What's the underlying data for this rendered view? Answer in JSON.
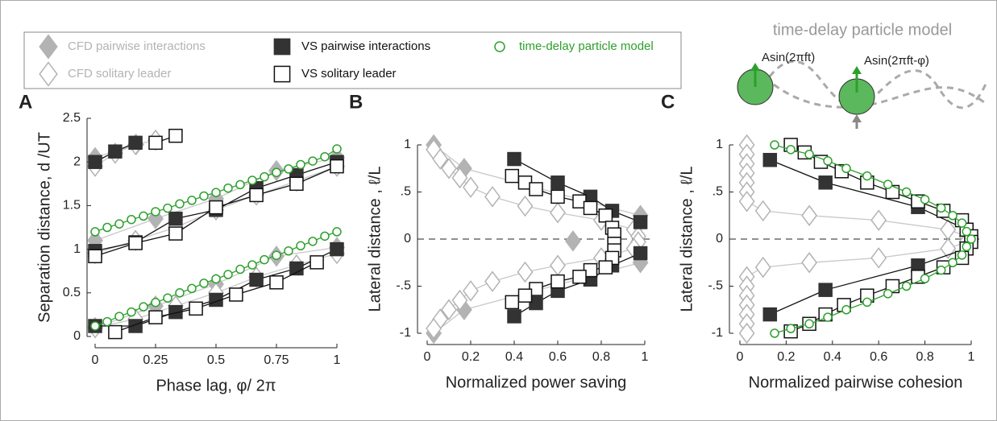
{
  "chart_data": [
    {
      "type": "scatter",
      "panel": "A",
      "x_label": "Phase lag, φ/ 2π",
      "y_label": "Separation distance, d /UT",
      "xlim": [
        0,
        1
      ],
      "ylim": [
        0,
        2.5
      ],
      "xticks": [
        0,
        0.25,
        0.5,
        0.75,
        1
      ],
      "yticks": [
        0,
        0.5,
        1,
        1.5,
        2,
        2.5
      ],
      "series": [
        {
          "name": "CFD pairwise interactions",
          "marker": "diamond",
          "filled": true,
          "color": "#b3b3b3",
          "line_color": "#c8c8c8",
          "x": [
            0,
            0.25,
            0.5,
            0.75,
            1,
            null,
            0,
            0.25,
            0.5,
            0.75,
            1,
            null,
            0,
            0.17
          ],
          "values": [
            0.1,
            0.35,
            0.6,
            0.92,
            1.02,
            null,
            1.1,
            1.35,
            1.58,
            1.9,
            2.05,
            null,
            2.05,
            2.2
          ]
        },
        {
          "name": "CFD solitary leader",
          "marker": "diamond",
          "filled": false,
          "color": "#b3b3b3",
          "line_color": "#c8c8c8",
          "x": [
            0,
            0.167,
            0.333,
            0.5,
            0.667,
            0.833,
            1,
            null,
            0,
            0.167,
            0.333,
            0.5,
            0.667,
            0.833,
            1,
            null,
            0,
            0.083,
            0.167,
            0.25
          ],
          "values": [
            0.1,
            0.2,
            0.35,
            0.5,
            0.68,
            0.82,
            0.95,
            null,
            0.95,
            1.1,
            1.25,
            1.45,
            1.62,
            1.78,
            1.95,
            null,
            1.95,
            2.1,
            2.2,
            2.25
          ]
        },
        {
          "name": "VS pairwise interactions",
          "marker": "square",
          "filled": true,
          "color": "#333333",
          "line_color": "#111111",
          "x": [
            0,
            0.167,
            0.333,
            0.5,
            0.667,
            0.833,
            1,
            null,
            0,
            0.167,
            0.333,
            0.5,
            0.667,
            0.833,
            1,
            null,
            0,
            0.083,
            0.167
          ],
          "values": [
            0.12,
            0.12,
            0.28,
            0.42,
            0.65,
            0.78,
            1.0,
            null,
            0.98,
            1.08,
            1.35,
            1.45,
            1.7,
            1.85,
            2.0,
            null,
            2.0,
            2.12,
            2.22
          ]
        },
        {
          "name": "VS solitary leader",
          "marker": "square",
          "filled": false,
          "color": "#111111",
          "line_color": "#111111",
          "x": [
            0.083,
            0.25,
            0.417,
            0.583,
            0.75,
            0.917,
            null,
            0,
            0.167,
            0.333,
            0.5,
            0.667,
            0.833,
            1,
            null,
            0.25,
            0.333
          ],
          "values": [
            0.05,
            0.22,
            0.32,
            0.48,
            0.62,
            0.85,
            null,
            0.92,
            1.07,
            1.18,
            1.48,
            1.62,
            1.75,
            1.95,
            null,
            2.22,
            2.3
          ]
        },
        {
          "name": "time-delay particle model",
          "marker": "circle",
          "filled": false,
          "color": "#2ca02c",
          "line_color": "#2ca02c",
          "x": [
            0,
            0.05,
            0.1,
            0.15,
            0.2,
            0.25,
            0.3,
            0.35,
            0.4,
            0.45,
            0.5,
            0.55,
            0.6,
            0.65,
            0.7,
            0.75,
            0.8,
            0.85,
            0.9,
            0.95,
            1,
            null,
            0,
            0.05,
            0.1,
            0.15,
            0.2,
            0.25,
            0.3,
            0.35,
            0.4,
            0.45,
            0.5,
            0.55,
            0.6,
            0.65,
            0.7,
            0.75,
            0.8,
            0.85,
            0.9,
            0.95,
            1
          ],
          "values": [
            0.12,
            0.17,
            0.23,
            0.28,
            0.34,
            0.39,
            0.44,
            0.5,
            0.55,
            0.61,
            0.66,
            0.71,
            0.77,
            0.82,
            0.88,
            0.93,
            0.98,
            1.04,
            1.09,
            1.15,
            1.2,
            null,
            1.2,
            1.25,
            1.29,
            1.34,
            1.38,
            1.43,
            1.47,
            1.52,
            1.56,
            1.61,
            1.65,
            1.7,
            1.74,
            1.79,
            1.83,
            1.88,
            1.92,
            1.97,
            2.01,
            2.06,
            2.15
          ]
        }
      ]
    },
    {
      "type": "scatter",
      "panel": "B",
      "x_label": "Normalized power saving",
      "y_label": "Lateral distance , ℓ/L",
      "xlim": [
        0,
        1
      ],
      "ylim": [
        -1,
        1
      ],
      "xticks": [
        0,
        0.2,
        0.4,
        0.6,
        0.8,
        1
      ],
      "yticks": [
        -1,
        {
          "value": -0.5,
          "label": "-.5"
        },
        0,
        {
          "value": 0.5,
          "label": ".5"
        },
        1
      ],
      "reference_line": 0,
      "series": [
        {
          "name": "CFD pairwise interactions",
          "marker": "diamond",
          "filled": true,
          "color": "#b3b3b3",
          "line_color": "#c8c8c8",
          "x": [
            0.03,
            0.17,
            0.98,
            null,
            0.67,
            null,
            0.98,
            0.17,
            0.03
          ],
          "values": [
            1,
            0.75,
            0.25,
            null,
            -0.02,
            null,
            -0.25,
            -0.75,
            -1
          ]
        },
        {
          "name": "CFD solitary leader",
          "marker": "diamond",
          "filled": false,
          "color": "#b3b3b3",
          "line_color": "#c8c8c8",
          "x": [
            0.03,
            0.06,
            0.1,
            0.15,
            0.2,
            0.3,
            0.45,
            0.6,
            0.8,
            0.95,
            0.97,
            null,
            0.97,
            0.95,
            0.8,
            0.6,
            0.45,
            0.3,
            0.2,
            0.15,
            0.1,
            0.06,
            0.03
          ],
          "values": [
            0.95,
            0.85,
            0.75,
            0.65,
            0.55,
            0.45,
            0.35,
            0.28,
            0.2,
            0.1,
            0.03,
            null,
            -0.03,
            -0.1,
            -0.2,
            -0.28,
            -0.35,
            -0.45,
            -0.55,
            -0.65,
            -0.75,
            -0.85,
            -0.95
          ]
        },
        {
          "name": "VS pairwise interactions",
          "marker": "square",
          "filled": true,
          "color": "#333333",
          "line_color": "#111111",
          "x": [
            0.4,
            0.6,
            0.75,
            0.85,
            0.98,
            null,
            0.98,
            0.85,
            0.75,
            0.6,
            0.5,
            0.4
          ],
          "values": [
            0.85,
            0.6,
            0.45,
            0.3,
            0.18,
            null,
            -0.15,
            -0.28,
            -0.43,
            -0.55,
            -0.68,
            -0.82
          ]
        },
        {
          "name": "VS solitary leader",
          "marker": "square",
          "filled": false,
          "color": "#111111",
          "line_color": "#111111",
          "x": [
            0.39,
            0.45,
            0.5,
            0.6,
            0.7,
            0.75,
            0.82,
            0.85,
            0.86,
            0.86,
            null,
            0.86,
            0.86,
            0.85,
            0.82,
            0.75,
            0.7,
            0.6,
            0.5,
            0.45,
            0.39
          ],
          "values": [
            0.67,
            0.6,
            0.53,
            0.45,
            0.4,
            0.33,
            0.25,
            0.12,
            0.05,
            -0.05,
            null,
            -0.05,
            -0.12,
            -0.2,
            -0.3,
            -0.33,
            -0.4,
            -0.45,
            -0.53,
            -0.6,
            -0.67
          ]
        }
      ]
    },
    {
      "type": "scatter",
      "panel": "C",
      "x_label": "Normalized pairwise cohesion",
      "y_label": "Lateral distance , ℓ/L",
      "xlim": [
        0,
        1
      ],
      "ylim": [
        -1,
        1
      ],
      "xticks": [
        0,
        0.2,
        0.4,
        0.6,
        0.8,
        1
      ],
      "yticks": [
        -1,
        {
          "value": -0.5,
          "label": "-.5"
        },
        0,
        {
          "value": 0.5,
          "label": ".5"
        },
        1
      ],
      "reference_line": 0,
      "series": [
        {
          "name": "CFD solitary leader",
          "marker": "diamond",
          "filled": false,
          "color": "#b3b3b3",
          "line_color": "#c8c8c8",
          "x": [
            0.03,
            0.03,
            0.03,
            0.03,
            0.03,
            0.03,
            0.03,
            0.1,
            0.3,
            0.6,
            0.9,
            0.98,
            null,
            0.98,
            0.9,
            0.6,
            0.3,
            0.1,
            0.03,
            0.03,
            0.03,
            0.03,
            0.03,
            0.03,
            0.03
          ],
          "values": [
            1,
            0.9,
            0.8,
            0.7,
            0.6,
            0.5,
            0.4,
            0.3,
            0.25,
            0.2,
            0.1,
            0.03,
            null,
            -0.03,
            -0.1,
            -0.2,
            -0.25,
            -0.3,
            -0.4,
            -0.5,
            -0.6,
            -0.7,
            -0.8,
            -0.9,
            -1
          ]
        },
        {
          "name": "VS pairwise interactions",
          "marker": "square",
          "filled": true,
          "color": "#333333",
          "line_color": "#111111",
          "x": [
            0.13,
            0.37,
            0.77,
            0.98,
            null,
            0.98,
            0.77,
            0.37,
            0.13
          ],
          "values": [
            0.84,
            0.6,
            0.34,
            0.1,
            null,
            -0.1,
            -0.28,
            -0.54,
            -0.8
          ]
        },
        {
          "name": "VS solitary leader",
          "marker": "square",
          "filled": false,
          "color": "#111111",
          "line_color": "#111111",
          "x": [
            0.22,
            0.28,
            0.35,
            0.44,
            0.55,
            0.66,
            0.77,
            0.88,
            0.96,
            0.98,
            1,
            null,
            1,
            0.98,
            0.96,
            0.88,
            0.77,
            0.66,
            0.55,
            0.45,
            0.37,
            0.3,
            0.22
          ],
          "values": [
            1,
            0.92,
            0.82,
            0.72,
            0.6,
            0.5,
            0.4,
            0.3,
            0.2,
            0.1,
            0.03,
            null,
            -0.03,
            -0.1,
            -0.2,
            -0.3,
            -0.4,
            -0.5,
            -0.6,
            -0.7,
            -0.8,
            -0.9,
            -0.98
          ]
        },
        {
          "name": "time-delay particle model",
          "marker": "circle",
          "filled": false,
          "color": "#2ca02c",
          "line_color": "#2ca02c",
          "x": [
            0.15,
            0.22,
            0.3,
            0.38,
            0.46,
            0.55,
            0.64,
            0.72,
            0.8,
            0.87,
            0.92,
            0.96,
            0.98,
            1,
            0.98,
            0.96,
            0.92,
            0.87,
            0.8,
            0.72,
            0.64,
            0.55,
            0.46,
            0.38,
            0.3,
            0.22,
            0.15
          ],
          "values": [
            1,
            0.95,
            0.9,
            0.83,
            0.75,
            0.67,
            0.58,
            0.5,
            0.42,
            0.33,
            0.25,
            0.17,
            0.08,
            0,
            -0.08,
            -0.17,
            -0.25,
            -0.33,
            -0.42,
            -0.5,
            -0.58,
            -0.67,
            -0.75,
            -0.83,
            -0.9,
            -0.95,
            -1
          ]
        }
      ]
    }
  ],
  "diagram": {
    "title": "time-delay particle model",
    "left_label": "Asin(2πft)",
    "right_label": "Asin(2πft-φ)"
  }
}
